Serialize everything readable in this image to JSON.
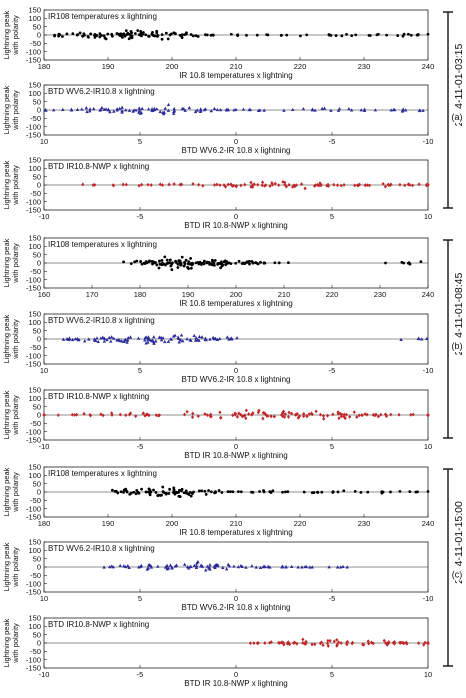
{
  "chart_data": [
    {
      "type": "scatter",
      "group": 0,
      "title": "IR108 temperatures x lightning",
      "xlabel": "IR 10.8 temperatures x lightning",
      "ylabel": [
        "Lightning peak",
        "with polarity"
      ],
      "xlim": [
        180,
        240
      ],
      "ylim": [
        -150,
        150
      ],
      "grid": false,
      "xticks": [
        180,
        190,
        200,
        210,
        220,
        230,
        240
      ],
      "yticks": [
        150,
        100,
        50,
        0,
        -50,
        -100,
        -150
      ],
      "marker": "dot",
      "color": "#000000",
      "series": [
        {
          "x": [
            184,
            186,
            188,
            190,
            192,
            194,
            196,
            198,
            200,
            202,
            206,
            210,
            216,
            222,
            228,
            234,
            238
          ],
          "y": [
            20,
            -30,
            45,
            -50,
            60,
            -40,
            70,
            -60,
            30,
            -20,
            15,
            -10,
            12,
            -15,
            20,
            -25,
            10
          ]
        }
      ]
    },
    {
      "type": "scatter",
      "group": 0,
      "title": "BTD WV6.2-IR10.8 x lightning",
      "xlabel": "BTD WV6.2-IR 10.8 x lightning",
      "ylabel": [
        "Lightning peak",
        "with polarity"
      ],
      "xlim": [
        10,
        -10
      ],
      "ylim": [
        -150,
        150
      ],
      "grid": false,
      "xticks": [
        10,
        5,
        0,
        -5,
        -10
      ],
      "yticks": [
        150,
        100,
        50,
        0,
        -50,
        -100,
        -150
      ],
      "marker": "triangle",
      "color": "#2b2b9a",
      "series": [
        {
          "x": [
            9,
            8,
            7,
            6,
            5,
            4,
            3,
            2,
            1,
            0,
            -2,
            -4,
            -6,
            -8,
            -9.5
          ],
          "y": [
            15,
            -25,
            30,
            -45,
            50,
            -60,
            40,
            -30,
            20,
            -15,
            10,
            -20,
            25,
            -10,
            15
          ]
        }
      ]
    },
    {
      "type": "scatter",
      "group": 0,
      "title": "BTD IR10.8-NWP x lightning",
      "xlabel": "BTD IR 10.8-NWP x lightning",
      "ylabel": [
        "Lightning peak",
        "with polarity"
      ],
      "xlim": [
        -10,
        10
      ],
      "ylim": [
        -150,
        150
      ],
      "grid": false,
      "xticks": [
        -10,
        -5,
        0,
        5,
        10
      ],
      "yticks": [
        150,
        100,
        50,
        0,
        -50,
        -100,
        -150
      ],
      "marker": "diamond",
      "color": "#c0282a",
      "series": [
        {
          "x": [
            -7,
            -5,
            -3,
            -1,
            0,
            1,
            2,
            3,
            4,
            5,
            6,
            7,
            8,
            9,
            10
          ],
          "y": [
            10,
            -15,
            20,
            -25,
            30,
            -35,
            40,
            -30,
            25,
            -20,
            15,
            -10,
            20,
            -15,
            10
          ]
        }
      ]
    },
    {
      "type": "scatter",
      "group": 1,
      "title": "IR108 temperatures x lightning",
      "xlabel": "IR 10.8 temperatures x lightning",
      "ylabel": [
        "Lightning peak",
        "with polarity"
      ],
      "xlim": [
        160,
        240
      ],
      "ylim": [
        -150,
        150
      ],
      "grid": false,
      "xticks": [
        160,
        170,
        180,
        190,
        200,
        210,
        220,
        230,
        240
      ],
      "yticks": [
        150,
        100,
        50,
        0,
        -50,
        -100,
        -150
      ],
      "marker": "dot",
      "color": "#000000",
      "series": [
        {
          "x": [
            180,
            182,
            184,
            186,
            188,
            190,
            192,
            194,
            196,
            198,
            200,
            202,
            205,
            207,
            235
          ],
          "y": [
            40,
            -50,
            60,
            -70,
            80,
            -60,
            50,
            -40,
            70,
            -50,
            40,
            -30,
            20,
            -10,
            -20
          ]
        }
      ]
    },
    {
      "type": "scatter",
      "group": 1,
      "title": "BTD WV6.2-IR10.8 x lightning",
      "xlabel": "BTD WV6.2-IR 10.8 x lightning",
      "ylabel": [
        "Lightning peak",
        "with polarity"
      ],
      "xlim": [
        10,
        -10
      ],
      "ylim": [
        -150,
        150
      ],
      "grid": false,
      "xticks": [
        10,
        5,
        0,
        -5,
        -10
      ],
      "yticks": [
        150,
        100,
        50,
        0,
        -50,
        -100,
        -150
      ],
      "marker": "triangle",
      "color": "#2b2b9a",
      "series": [
        {
          "x": [
            9,
            8,
            7,
            6,
            5,
            4,
            3,
            2,
            1,
            0.5,
            -9.5
          ],
          "y": [
            20,
            -30,
            40,
            -50,
            60,
            -70,
            80,
            -40,
            30,
            -20,
            10
          ]
        }
      ]
    },
    {
      "type": "scatter",
      "group": 1,
      "title": "BTD IR10.8-NWP x lightning",
      "xlabel": "BTD IR 10.8-NWP x lightning",
      "ylabel": [
        "Lightning peak",
        "with polarity"
      ],
      "xlim": [
        -10,
        10
      ],
      "ylim": [
        -150,
        150
      ],
      "grid": false,
      "xticks": [
        -10,
        -5,
        0,
        5,
        10
      ],
      "yticks": [
        150,
        100,
        50,
        0,
        -50,
        -100,
        -150
      ],
      "marker": "diamond",
      "color": "#c0282a",
      "series": [
        {
          "x": [
            -10,
            -8,
            -6,
            -4,
            -2,
            0,
            1,
            2,
            3,
            4,
            5,
            6,
            7,
            8,
            10
          ],
          "y": [
            10,
            -20,
            30,
            -40,
            50,
            -60,
            70,
            -50,
            40,
            -30,
            60,
            -40,
            20,
            -10,
            15
          ]
        }
      ]
    },
    {
      "type": "scatter",
      "group": 2,
      "title": "IR108 temperatures x lightning",
      "xlabel": "IR 10.8 temperatures x lightning",
      "ylabel": [
        "Lightning peak",
        "with polarity"
      ],
      "xlim": [
        180,
        240
      ],
      "ylim": [
        -150,
        150
      ],
      "grid": false,
      "xticks": [
        180,
        190,
        200,
        210,
        220,
        230,
        240
      ],
      "yticks": [
        150,
        100,
        50,
        0,
        -50,
        -100,
        -150
      ],
      "marker": "dot",
      "color": "#000000",
      "series": [
        {
          "x": [
            193,
            195,
            197,
            199,
            201,
            203,
            205,
            208,
            212,
            216,
            220,
            226,
            232,
            238
          ],
          "y": [
            30,
            -40,
            50,
            -60,
            70,
            -50,
            40,
            -30,
            20,
            -15,
            10,
            -20,
            15,
            -10
          ]
        }
      ]
    },
    {
      "type": "scatter",
      "group": 2,
      "title": "BTD WV6.2-IR10.8 x lightning",
      "xlabel": "BTD WV6.2-IR 10.8 x lightning",
      "ylabel": [
        "Lightning peak",
        "with polarity"
      ],
      "xlim": [
        10,
        -10
      ],
      "ylim": [
        -150,
        150
      ],
      "grid": false,
      "xticks": [
        10,
        5,
        0,
        -5,
        -10
      ],
      "yticks": [
        150,
        100,
        50,
        0,
        -50,
        -100,
        -150
      ],
      "marker": "triangle",
      "color": "#2b2b9a",
      "series": [
        {
          "x": [
            6,
            5,
            4,
            3,
            2,
            1,
            0,
            -1,
            -2,
            -3,
            -4,
            -5
          ],
          "y": [
            20,
            -30,
            40,
            -50,
            60,
            -40,
            30,
            -20,
            15,
            -10,
            10,
            -5
          ]
        }
      ]
    },
    {
      "type": "scatter",
      "group": 2,
      "title": "BTD IR10.8-NWP x lightning",
      "xlabel": "BTD IR 10.8-NWP x lightning",
      "ylabel": [
        "Lightning peak",
        "with polarity"
      ],
      "xlim": [
        -10,
        10
      ],
      "ylim": [
        -150,
        150
      ],
      "grid": false,
      "xticks": [
        -10,
        -5,
        0,
        5,
        10
      ],
      "yticks": [
        150,
        100,
        50,
        0,
        -50,
        -100,
        -150
      ],
      "marker": "diamond",
      "color": "#c0282a",
      "series": [
        {
          "x": [
            1,
            2,
            3,
            4,
            5,
            6,
            7,
            8,
            9,
            10
          ],
          "y": [
            10,
            -20,
            30,
            -40,
            50,
            -30,
            40,
            -20,
            30,
            -10
          ]
        }
      ]
    }
  ],
  "annotations": [
    {
      "group": 0,
      "date": "2014-11-01-03:15",
      "tag": "(a)"
    },
    {
      "group": 1,
      "date": "2014-11-01-08:45",
      "tag": "(b)"
    },
    {
      "group": 2,
      "date": "2014-11-01-15:00",
      "tag": "(c)"
    }
  ]
}
